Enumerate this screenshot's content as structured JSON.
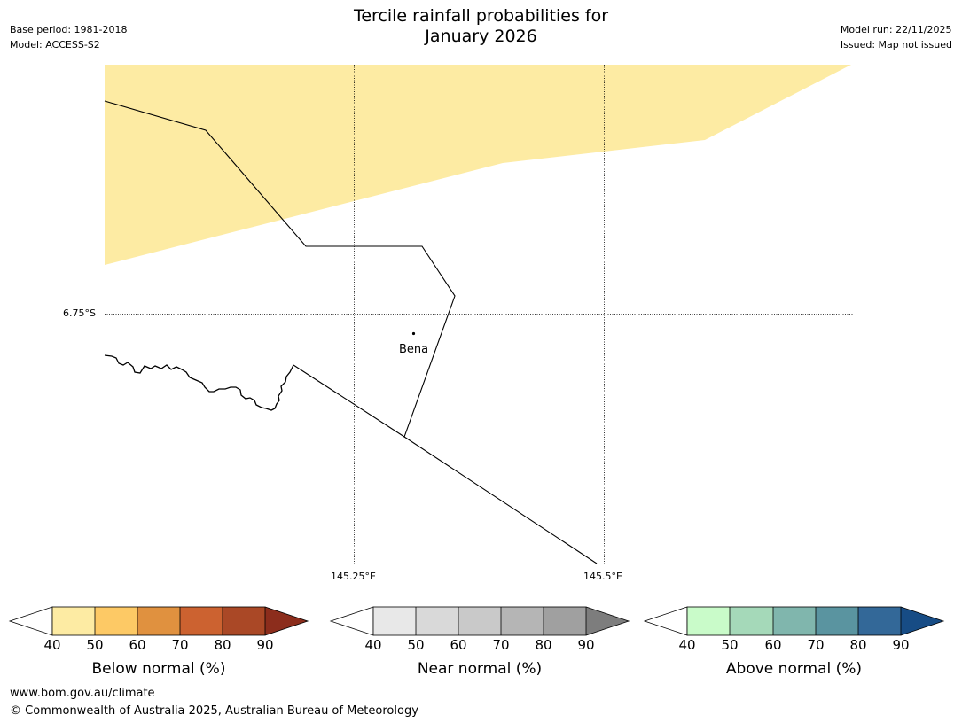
{
  "header": {
    "base_period": "Base period: 1981-2018",
    "model": "Model: ACCESS-S2",
    "title_line1": "Tercile rainfall probabilities for",
    "title_line2": "January 2026",
    "model_run": "Model run: 22/11/2025",
    "issued": "Issued: Map not issued"
  },
  "map": {
    "lat_label": "6.75°S",
    "lon_labels": [
      "145.25°E",
      "145.5°E"
    ],
    "place_name": "Bena",
    "shaded_category": "Below normal 40-50%",
    "shaded_color": "#fdeba3"
  },
  "colorbars": [
    {
      "title": "Below normal (%)",
      "ticks": [
        "40",
        "50",
        "60",
        "70",
        "80",
        "90"
      ],
      "colors": [
        "#fdeba3",
        "#fdc965",
        "#e0913f",
        "#cc6230",
        "#aa4826",
        "#8c2d1c"
      ]
    },
    {
      "title": "Near normal (%)",
      "ticks": [
        "40",
        "50",
        "60",
        "70",
        "80",
        "90"
      ],
      "colors": [
        "#e8e8e8",
        "#d9d9d9",
        "#c9c9c9",
        "#b5b5b5",
        "#a0a0a0",
        "#7d7d7d"
      ]
    },
    {
      "title": "Above normal (%)",
      "ticks": [
        "40",
        "50",
        "60",
        "70",
        "80",
        "90"
      ],
      "colors": [
        "#c9fbc9",
        "#a5d9b9",
        "#80b6ad",
        "#5a94a0",
        "#336898",
        "#174c85"
      ]
    }
  ],
  "footer": {
    "url": "www.bom.gov.au/climate",
    "copyright": "© Commonwealth of Australia 2025, Australian Bureau of Meteorology"
  }
}
